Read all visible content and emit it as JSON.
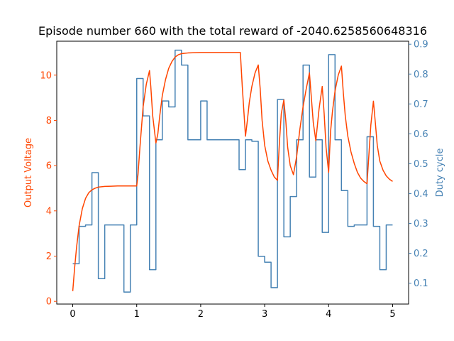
{
  "chart_data": {
    "type": "line",
    "title": "Episode number 660 with the total reward of -2040.6258560648316",
    "xlabel": "",
    "ylabel_left": "Output Voltage",
    "ylabel_right": "Duty cycle",
    "xlim": [
      -0.25,
      5.25
    ],
    "ylim_left": [
      -0.12,
      11.5
    ],
    "ylim_right": [
      0.03,
      0.91
    ],
    "x_ticks": [
      0,
      1,
      2,
      3,
      4,
      5
    ],
    "y_left_ticks": [
      0,
      2,
      4,
      6,
      8,
      10
    ],
    "y_right_ticks": [
      0.1,
      0.2,
      0.3,
      0.4,
      0.5,
      0.6,
      0.7,
      0.8,
      0.9
    ],
    "grid": false,
    "colors": {
      "left": "#ff4500",
      "right": "#4682b4",
      "title": "#000000"
    },
    "series": [
      {
        "axis": "right",
        "step": true,
        "x": [
          0,
          0.1,
          0.2,
          0.3,
          0.4,
          0.5,
          0.8,
          0.9,
          1.0,
          1.1,
          1.2,
          1.3,
          1.4,
          1.5,
          1.6,
          1.7,
          1.8,
          2.0,
          2.1,
          2.2,
          2.6,
          2.7,
          2.8,
          2.9,
          3.0,
          3.1,
          3.2,
          3.3,
          3.4,
          3.5,
          3.6,
          3.7,
          3.8,
          3.9,
          4.0,
          4.1,
          4.2,
          4.3,
          4.4,
          4.5,
          4.6,
          4.7,
          4.8,
          4.9,
          5.0
        ],
        "values": [
          0.165,
          0.29,
          0.295,
          0.47,
          0.115,
          0.295,
          0.07,
          0.295,
          0.785,
          0.66,
          0.145,
          0.58,
          0.71,
          0.69,
          0.88,
          0.83,
          0.58,
          0.71,
          0.58,
          0.58,
          0.48,
          0.58,
          0.575,
          0.19,
          0.17,
          0.085,
          0.715,
          0.255,
          0.39,
          0.58,
          0.83,
          0.455,
          0.58,
          0.27,
          0.865,
          0.58,
          0.41,
          0.29,
          0.295,
          0.295,
          0.59,
          0.29,
          0.145,
          0.295,
          0.295
        ]
      },
      {
        "axis": "left",
        "step": false,
        "x": [
          0,
          0.03,
          0.06,
          0.1,
          0.15,
          0.2,
          0.25,
          0.3,
          0.35,
          0.4,
          0.5,
          0.6,
          0.7,
          0.8,
          0.9,
          1.0,
          1.02,
          1.05,
          1.1,
          1.15,
          1.2,
          1.22,
          1.25,
          1.3,
          1.33,
          1.36,
          1.4,
          1.45,
          1.5,
          1.55,
          1.6,
          1.65,
          1.7,
          1.8,
          2.0,
          2.2,
          2.4,
          2.62,
          2.65,
          2.7,
          2.73,
          2.76,
          2.8,
          2.85,
          2.9,
          2.93,
          2.96,
          3.0,
          3.05,
          3.1,
          3.15,
          3.2,
          3.23,
          3.26,
          3.3,
          3.33,
          3.36,
          3.4,
          3.45,
          3.5,
          3.55,
          3.6,
          3.65,
          3.7,
          3.73,
          3.76,
          3.8,
          3.85,
          3.9,
          3.93,
          3.96,
          4.0,
          4.03,
          4.06,
          4.1,
          4.15,
          4.2,
          4.23,
          4.26,
          4.3,
          4.35,
          4.4,
          4.45,
          4.5,
          4.55,
          4.6,
          4.63,
          4.66,
          4.7,
          4.73,
          4.76,
          4.8,
          4.85,
          4.9,
          4.95,
          5.0
        ],
        "values": [
          0.45,
          1.5,
          2.4,
          3.35,
          4.1,
          4.55,
          4.8,
          4.93,
          5.0,
          5.05,
          5.08,
          5.09,
          5.1,
          5.1,
          5.1,
          5.1,
          5.6,
          6.8,
          8.6,
          9.6,
          10.2,
          9.5,
          8.2,
          7.0,
          7.4,
          8.2,
          9.1,
          9.8,
          10.3,
          10.6,
          10.8,
          10.9,
          10.95,
          10.98,
          11.0,
          11.0,
          11.0,
          11.0,
          9.5,
          7.3,
          8.0,
          8.8,
          9.5,
          10.1,
          10.45,
          9.4,
          8.0,
          6.9,
          6.2,
          5.8,
          5.5,
          5.35,
          7.0,
          8.3,
          8.9,
          8.0,
          6.8,
          6.0,
          5.6,
          6.4,
          7.6,
          8.6,
          9.4,
          10.1,
          9.0,
          7.9,
          7.1,
          8.5,
          9.5,
          8.3,
          6.8,
          5.7,
          7.5,
          8.4,
          9.3,
          10.0,
          10.4,
          9.2,
          8.2,
          7.3,
          6.6,
          6.1,
          5.7,
          5.45,
          5.3,
          5.2,
          6.5,
          7.8,
          8.85,
          7.9,
          6.9,
          6.2,
          5.8,
          5.55,
          5.4,
          5.3
        ]
      }
    ]
  }
}
